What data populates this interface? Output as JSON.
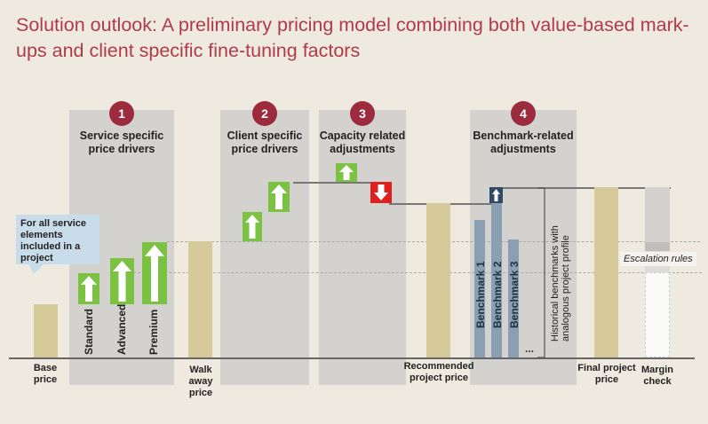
{
  "title": "Solution outlook: A preliminary pricing model combining both value-based mark-ups and client specific fine-tuning factors",
  "steps": [
    {
      "number": "1",
      "label": "Service specific price drivers"
    },
    {
      "number": "2",
      "label": "Client specific price drivers"
    },
    {
      "number": "3",
      "label": "Capacity related adjustments"
    },
    {
      "number": "4",
      "label": "Benchmark-related adjustments"
    }
  ],
  "callout": "For all service elements included in a project",
  "drivers": [
    "Standard",
    "Advanced",
    "Premium"
  ],
  "benchmarks": [
    "Benchmark 1",
    "Benchmark 2",
    "Benchmark 3"
  ],
  "ellipsis": "...",
  "benchmark_note": "Historical benchmarks with analogous project profile",
  "escalation": "Escalation rules",
  "bottom_labels": {
    "base": "Base price",
    "walk_away": "Walk away price",
    "recommended": "Recommended project price",
    "final": "Final project price",
    "margin": "Margin check"
  },
  "colors": {
    "accent": "#9b2b3d",
    "green": "#7cc242",
    "red": "#e0201f",
    "tan": "#d6c99a",
    "benchmark": "#8aa0b2"
  }
}
